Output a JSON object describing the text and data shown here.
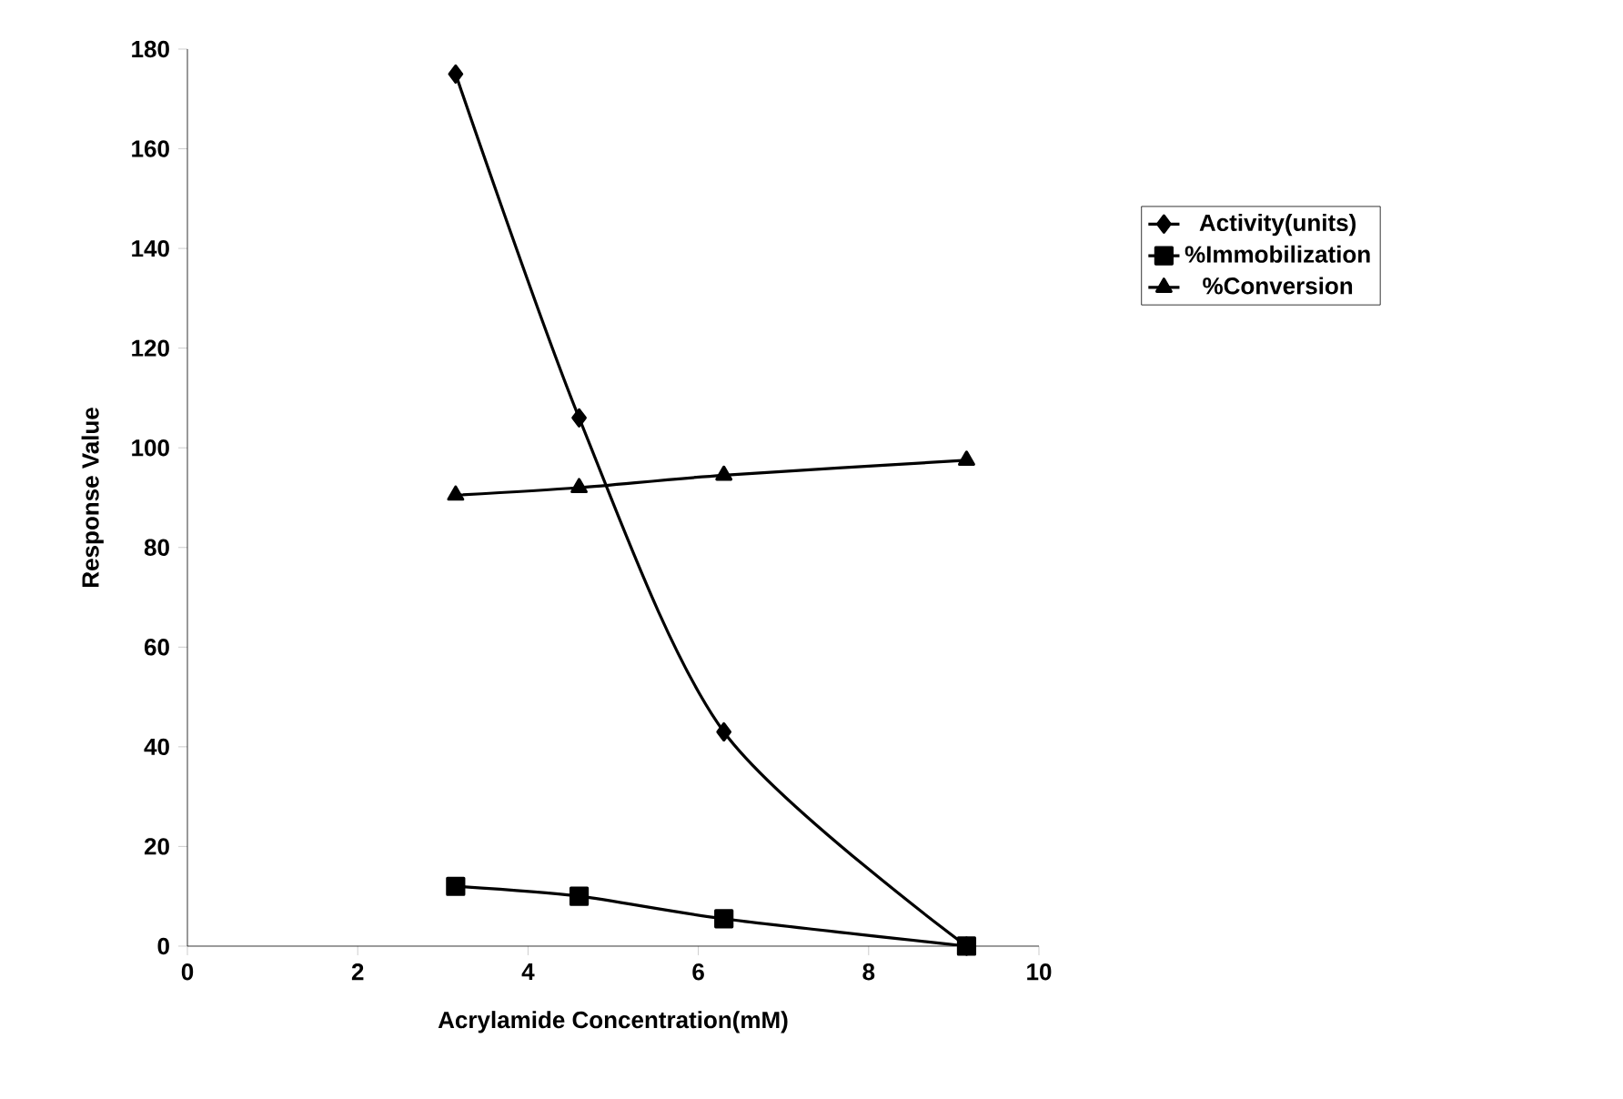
{
  "chart_data": {
    "type": "line",
    "xlabel": "Acrylamide Concentration(mM)",
    "ylabel": "Response Value",
    "x": [
      3.15,
      4.6,
      6.3,
      9.15
    ],
    "xlim": [
      0,
      10
    ],
    "xticks": [
      0,
      2,
      4,
      6,
      8,
      10
    ],
    "ylim": [
      0,
      180
    ],
    "yticks": [
      0,
      20,
      40,
      60,
      80,
      100,
      120,
      140,
      160,
      180
    ],
    "grid": false,
    "legend": "right",
    "series": [
      {
        "name": "Activity(units)",
        "color": "#000000",
        "marker": "diamond",
        "values": [
          175,
          106,
          43,
          0
        ]
      },
      {
        "name": "%Immobilization",
        "color": "#000000",
        "marker": "square",
        "values": [
          12,
          10,
          5.5,
          0
        ]
      },
      {
        "name": "%Conversion",
        "color": "#000000",
        "marker": "triangle",
        "values": [
          90.5,
          92,
          94.5,
          97.5
        ]
      }
    ]
  }
}
